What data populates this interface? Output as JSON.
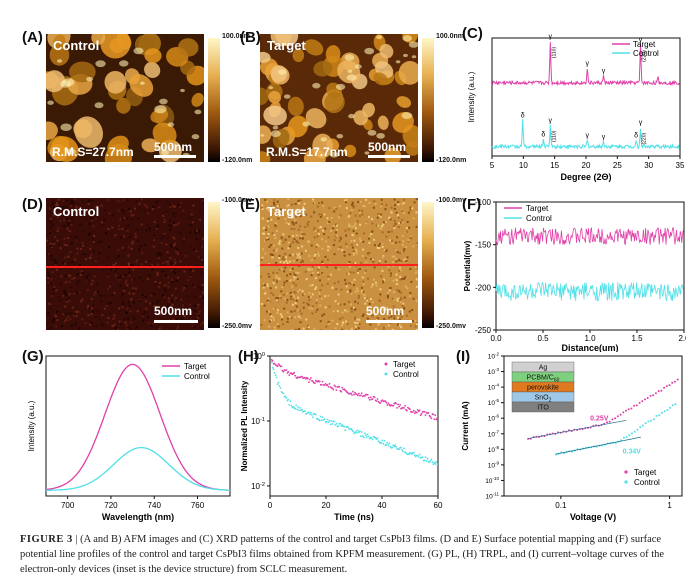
{
  "colors": {
    "target": "#e040a8",
    "control": "#4fe0e8",
    "red_line": "#ff2020"
  },
  "panelA": {
    "letter": "(A)",
    "label": "Control",
    "rms": "R.M.S=27.7nm",
    "scale": "500nm",
    "cbar_top": "100.0nm",
    "cbar_bottom": "-120.0nm"
  },
  "panelB": {
    "letter": "(B)",
    "label": "Target",
    "rms": "R.M.S=17.7nm",
    "scale": "500nm",
    "cbar_top": "100.0nm",
    "cbar_bottom": "-120.0nm"
  },
  "panelD": {
    "letter": "(D)",
    "label": "Control",
    "scale": "500nm",
    "cbar_top": "-100.0mv",
    "cbar_bottom": "-250.0mv"
  },
  "panelE": {
    "letter": "(E)",
    "label": "Target",
    "scale": "500nm",
    "cbar_top": "-100.0mv",
    "cbar_bottom": "-250.0mv"
  },
  "panelC": {
    "letter": "(C)"
  },
  "panelF": {
    "letter": "(F)"
  },
  "panelG": {
    "letter": "(G)"
  },
  "panelH": {
    "letter": "(H)"
  },
  "panelI": {
    "letter": "(I)"
  },
  "chart_data": [
    {
      "id": "C",
      "type": "line",
      "title": "",
      "xlabel": "Degree (2Θ)",
      "ylabel": "Intensity (a.u.)",
      "xlim": [
        5,
        35
      ],
      "xticks": [
        5,
        10,
        15,
        20,
        25,
        30,
        35
      ],
      "legend": [
        "Target",
        "Control"
      ],
      "series": [
        {
          "name": "Target",
          "offset": 0.62,
          "peaks": [
            [
              14.3,
              0.35
            ],
            [
              20.2,
              0.12
            ],
            [
              22.8,
              0.06
            ],
            [
              28.7,
              0.32
            ],
            [
              31.5,
              0.04
            ]
          ]
        },
        {
          "name": "Control",
          "offset": 0.08,
          "peaks": [
            [
              9.9,
              0.22
            ],
            [
              13.2,
              0.06
            ],
            [
              14.3,
              0.18
            ],
            [
              20.2,
              0.05
            ],
            [
              22.8,
              0.04
            ],
            [
              28.0,
              0.05
            ],
            [
              28.7,
              0.16
            ]
          ]
        }
      ],
      "annotations": [
        {
          "x": 14.3,
          "symbol": "γ",
          "label": "(110)",
          "series": "Target"
        },
        {
          "x": 20.2,
          "symbol": "γ",
          "label": "",
          "series": "Target"
        },
        {
          "x": 22.8,
          "symbol": "γ",
          "label": "",
          "series": "Target"
        },
        {
          "x": 28.7,
          "symbol": "γ",
          "label": "(220)",
          "series": "Target"
        },
        {
          "x": 9.9,
          "symbol": "δ",
          "label": "",
          "series": "Control"
        },
        {
          "x": 13.2,
          "symbol": "δ",
          "label": "",
          "series": "Control"
        },
        {
          "x": 14.3,
          "symbol": "γ",
          "label": "(110)",
          "series": "Control"
        },
        {
          "x": 20.2,
          "symbol": "γ",
          "label": "",
          "series": "Control"
        },
        {
          "x": 22.8,
          "symbol": "γ",
          "label": "",
          "series": "Control"
        },
        {
          "x": 28.0,
          "symbol": "δ",
          "label": "",
          "series": "Control"
        },
        {
          "x": 28.7,
          "symbol": "γ",
          "label": "(220)",
          "series": "Control"
        }
      ]
    },
    {
      "id": "F",
      "type": "line",
      "title": "",
      "xlabel": "Distance(um)",
      "ylabel": "Potential(mv)",
      "xlim": [
        0,
        2.0
      ],
      "ylim": [
        -250,
        -100
      ],
      "xticks": [
        0.0,
        0.5,
        1.0,
        1.5,
        2.0
      ],
      "yticks": [
        -100,
        -150,
        -200,
        -250
      ],
      "legend": [
        "Target",
        "Control"
      ],
      "series": [
        {
          "name": "Target",
          "mean": -140,
          "noise": 10
        },
        {
          "name": "Control",
          "mean": -205,
          "noise": 11
        }
      ]
    },
    {
      "id": "G",
      "type": "line",
      "title": "",
      "xlabel": "Wavelength (nm)",
      "ylabel": "Intensity (a.u.)",
      "xlim": [
        690,
        775
      ],
      "xticks": [
        700,
        720,
        740,
        760
      ],
      "legend": [
        "Target",
        "Control"
      ],
      "series": [
        {
          "name": "Target",
          "center": 730,
          "amplitude": 1.0,
          "width": 18
        },
        {
          "name": "Control",
          "center": 734,
          "amplitude": 0.34,
          "width": 18
        }
      ]
    },
    {
      "id": "H",
      "type": "scatter",
      "title": "",
      "xlabel": "Time (ns)",
      "ylabel": "Normalized PL Intensity",
      "xlim": [
        0,
        60
      ],
      "yscale": "log",
      "ylim": [
        0.007,
        1.0
      ],
      "xticks": [
        0,
        20,
        40,
        60
      ],
      "yticks": [
        "10^0",
        "10^-1",
        "10^-2"
      ],
      "legend": [
        "Target",
        "Control"
      ],
      "series": [
        {
          "name": "Target",
          "a1": 0.35,
          "t1": 2.5,
          "a2": 0.65,
          "t2": 34.0
        },
        {
          "name": "Control",
          "a1": 0.78,
          "t1": 2.0,
          "a2": 0.22,
          "t2": 26.0
        }
      ]
    },
    {
      "id": "I",
      "type": "scatter",
      "title": "",
      "xlabel": "Voltage (V)",
      "ylabel": "Current (mA)",
      "xscale": "log",
      "yscale": "log",
      "xlim": [
        0.03,
        1.3
      ],
      "ylim_exp": [
        -11,
        -2
      ],
      "xticks": [
        "0.1",
        "1"
      ],
      "yticks": [
        "10^-2",
        "10^-3",
        "10^-4",
        "10^-5",
        "10^-6",
        "10^-7",
        "10^-8",
        "10^-9",
        "10^-10",
        "10^-11"
      ],
      "legend": [
        "Target",
        "Control"
      ],
      "annotations": [
        {
          "text": "0.25V",
          "series": "Target"
        },
        {
          "text": "0.34V",
          "series": "Control"
        }
      ],
      "inset_layers": [
        "Ag",
        "PCBM/C60",
        "perovskite",
        "SnO2",
        "ITO"
      ]
    }
  ],
  "caption": {
    "label": "FIGURE 3",
    "sep": "|",
    "text": "(A and B) AFM images and (C) XRD patterns of the control and target CsPbI3 films. (D and E) Surface potential mapping and (F) surface potential line profiles of the control and target CsPbI3 films obtained from KPFM measurement. (G) PL, (H) TRPL, and (I) current–voltage curves of the electron-only devices (inset is the device structure) from SCLC measurement."
  }
}
